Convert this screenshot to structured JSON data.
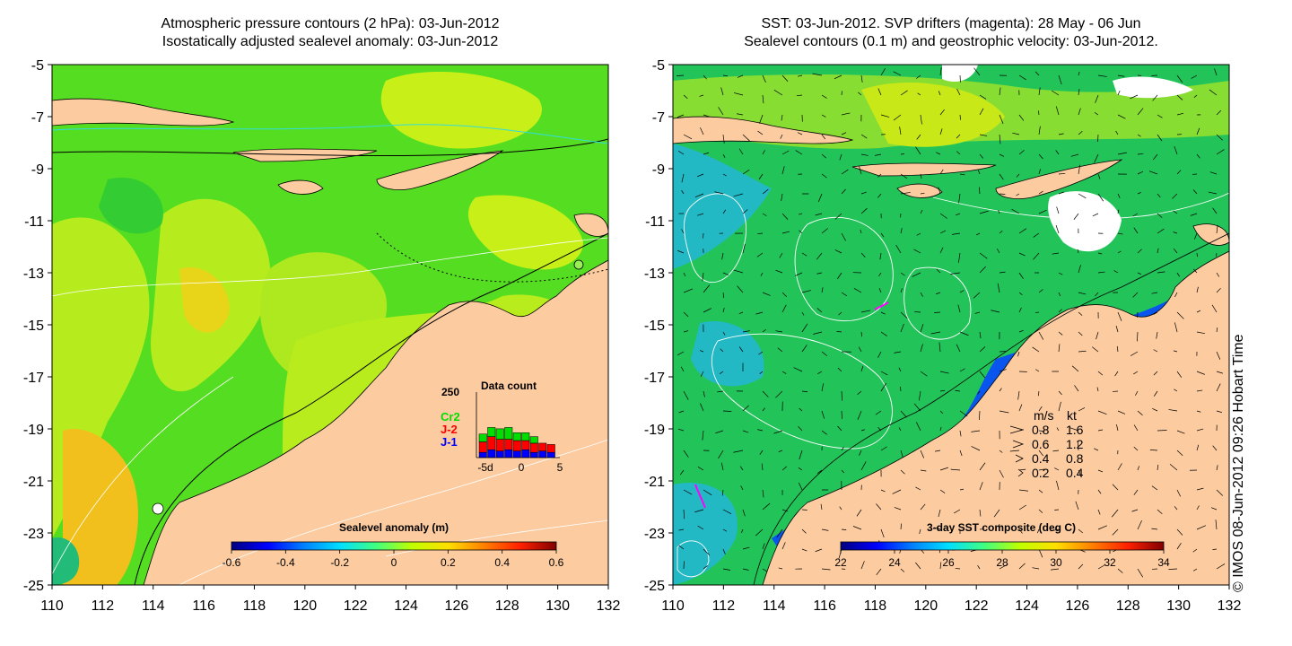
{
  "left_panel": {
    "title_line1": "Atmospheric pressure contours (2 hPa): 03-Jun-2012",
    "title_line2": "Isostatically adjusted sealevel anomaly: 03-Jun-2012",
    "y_ticks": [
      "-5",
      "-7",
      "-9",
      "-11",
      "-13",
      "-15",
      "-17",
      "-19",
      "-21",
      "-23",
      "-25"
    ],
    "x_ticks": [
      "110",
      "112",
      "114",
      "116",
      "118",
      "120",
      "122",
      "124",
      "126",
      "128",
      "130",
      "132"
    ],
    "colorbar": {
      "title": "Sealevel anomaly (m)",
      "ticks": [
        "-0.6",
        "-0.4",
        "-0.2",
        "0",
        "0.2",
        "0.4",
        "0.6"
      ],
      "colors": [
        "#00007f",
        "#0000ff",
        "#0080ff",
        "#00dfff",
        "#40ff80",
        "#c0ff00",
        "#ffdf00",
        "#ff8000",
        "#ff2000",
        "#800000"
      ]
    },
    "data_count": {
      "title": "Data count",
      "max_label": "250",
      "x_ticks": [
        "-5d",
        "0",
        "5"
      ],
      "series_labels": [
        {
          "label": "Cr2",
          "color": "#00dd00"
        },
        {
          "label": "J-2",
          "color": "#ff0000"
        },
        {
          "label": "J-1",
          "color": "#0000ff"
        }
      ],
      "bars": [
        {
          "j1": 20,
          "j2": 40,
          "cr2": 30
        },
        {
          "j1": 30,
          "j2": 50,
          "cr2": 35
        },
        {
          "j1": 25,
          "j2": 45,
          "cr2": 40
        },
        {
          "j1": 30,
          "j2": 40,
          "cr2": 45
        },
        {
          "j1": 25,
          "j2": 40,
          "cr2": 30
        },
        {
          "j1": 30,
          "j2": 35,
          "cr2": 30
        },
        {
          "j1": 20,
          "j2": 35,
          "cr2": 25
        },
        {
          "j1": 25,
          "j2": 30,
          "cr2": 0
        },
        {
          "j1": 20,
          "j2": 30,
          "cr2": 0
        }
      ]
    },
    "colors": {
      "land": "#fccba0",
      "field_green": "#33dd22",
      "field_yellow": "#ccf010",
      "contour": "#000000",
      "sla_contour": "#ffffff",
      "cyan": "#33dddd"
    }
  },
  "right_panel": {
    "title_line1": "SST: 03-Jun-2012. SVP drifters (magenta): 28 May - 06 Jun",
    "title_line2": "Sealevel contours (0.1 m) and geostrophic velocity: 03-Jun-2012.",
    "y_ticks": [
      "-5",
      "-7",
      "-9",
      "-11",
      "-13",
      "-15",
      "-17",
      "-19",
      "-21",
      "-23",
      "-25"
    ],
    "x_ticks": [
      "110",
      "112",
      "114",
      "116",
      "118",
      "120",
      "122",
      "124",
      "126",
      "128",
      "130",
      "132"
    ],
    "colorbar": {
      "title": "3-day SST composite (deg C)",
      "ticks": [
        "22",
        "24",
        "26",
        "28",
        "30",
        "32",
        "34"
      ],
      "colors": [
        "#00007f",
        "#0000ff",
        "#0080ff",
        "#00dfff",
        "#40ff80",
        "#c0ff00",
        "#ffdf00",
        "#ff8000",
        "#ff2000",
        "#800000"
      ]
    },
    "velocity_legend": {
      "header_ms": "m/s",
      "header_kt": "kt",
      "rows": [
        {
          "ms": "0.8",
          "kt": "1.6"
        },
        {
          "ms": "0.6",
          "kt": "1.2"
        },
        {
          "ms": "0.4",
          "kt": "0.8"
        },
        {
          "ms": "0.2",
          "kt": "0.4"
        }
      ]
    },
    "credit": "© IMOS 08-Jun-2012 09:26 Hobart Time",
    "colors": {
      "land": "#fccba0",
      "sea_green": "#22cc55",
      "sea_cyan": "#22c8d0",
      "coastal_blue": "#0a55ee",
      "drifter": "#ff00ff",
      "arrow": "#000000",
      "contour": "#ffffff"
    }
  }
}
